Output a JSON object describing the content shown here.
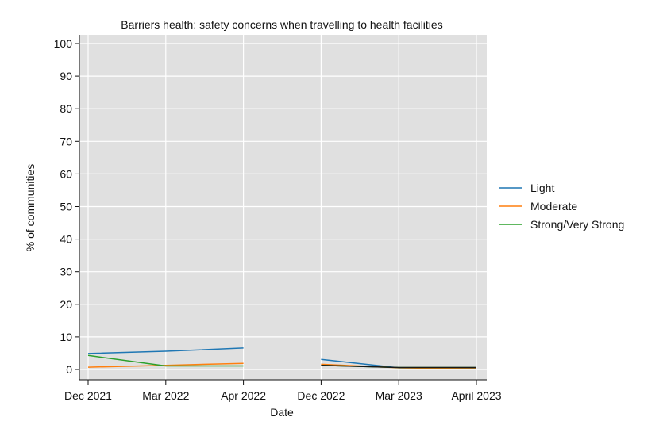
{
  "chart_data": {
    "type": "line",
    "title": "Barriers health: safety concerns when travelling to health facilities",
    "xlabel": "Date",
    "ylabel": "% of communities",
    "ylim": [
      0,
      100
    ],
    "yticks": [
      0,
      10,
      20,
      30,
      40,
      50,
      60,
      70,
      80,
      90,
      100
    ],
    "categories": [
      "Dec 2021",
      "Mar 2022",
      "Apr 2022",
      "Dec 2022",
      "Mar 2023",
      "April 2023"
    ],
    "grid": true,
    "legend_position": "right",
    "series": [
      {
        "name": "Light",
        "color": "#1f77b4",
        "values": [
          4.9,
          5.6,
          6.6,
          null,
          null,
          null
        ]
      },
      {
        "name": "Moderate",
        "color": "#ff7f0e",
        "values": [
          0.7,
          1.3,
          1.9,
          null,
          null,
          null
        ]
      },
      {
        "name": "Strong/Very Strong",
        "color": "#2ca02c",
        "values": [
          4.3,
          1.1,
          1.1,
          null,
          null,
          null
        ]
      },
      {
        "name": "Light",
        "color": "#1f77b4",
        "values": [
          null,
          null,
          null,
          3.1,
          0.5,
          0.5
        ]
      },
      {
        "name": "Moderate",
        "color": "#ff7f0e",
        "values": [
          null,
          null,
          null,
          1.6,
          0.5,
          0.2
        ]
      },
      {
        "name": "Strong/Very Strong",
        "color": "#2ca02c",
        "values": [
          null,
          null,
          null,
          1.3,
          0.6,
          0.6
        ]
      },
      {
        "name": "",
        "color": "#1a1a1a",
        "values": [
          null,
          null,
          null,
          1.3,
          0.6,
          0.6
        ]
      }
    ],
    "legend": [
      {
        "name": "Light",
        "color": "#1f77b4"
      },
      {
        "name": "Moderate",
        "color": "#ff7f0e"
      },
      {
        "name": "Strong/Very Strong",
        "color": "#2ca02c"
      }
    ]
  }
}
